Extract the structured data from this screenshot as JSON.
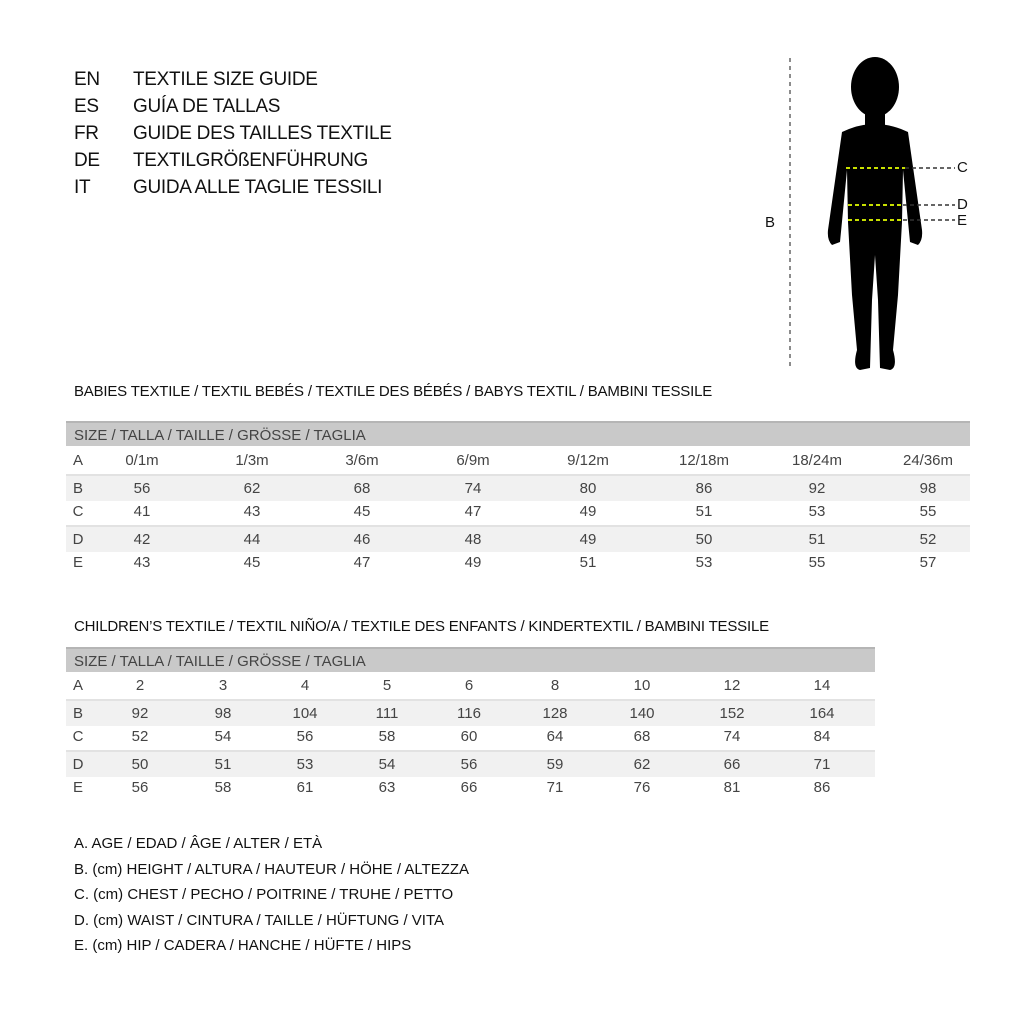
{
  "title_lines": [
    {
      "code": "EN",
      "text": "TEXTILE SIZE GUIDE"
    },
    {
      "code": "ES",
      "text": "GUÍA DE TALLAS"
    },
    {
      "code": "FR",
      "text": "GUIDE DES TAILLES TEXTILE"
    },
    {
      "code": "DE",
      "text": "TEXTILGRÖßENFÜHRUNG"
    },
    {
      "code": "IT",
      "text": "GUIDA ALLE TAGLIE TESSILI"
    }
  ],
  "figure_labels": {
    "b": "B",
    "c": "C",
    "d": "D",
    "e": "E"
  },
  "babies": {
    "title": "BABIES TEXTILE / TEXTIL BEBÉS / TEXTILE DES BÉBÉS / BABYS TEXTIL  / BAMBINI TESSILE",
    "header": "SIZE / TALLA / TAILLE / GRÖSSE / TAGLIA",
    "rows": [
      {
        "label": "A",
        "values": [
          "0/1m",
          "1/3m",
          "3/6m",
          "6/9m",
          "9/12m",
          "12/18m",
          "18/24m",
          "24/36m"
        ]
      },
      {
        "label": "B",
        "values": [
          "56",
          "62",
          "68",
          "74",
          "80",
          "86",
          "92",
          "98"
        ]
      },
      {
        "label": "C",
        "values": [
          "41",
          "43",
          "45",
          "47",
          "49",
          "51",
          "53",
          "55"
        ]
      },
      {
        "label": "D",
        "values": [
          "42",
          "44",
          "46",
          "48",
          "49",
          "50",
          "51",
          "52"
        ]
      },
      {
        "label": "E",
        "values": [
          "43",
          "45",
          "47",
          "49",
          "51",
          "53",
          "55",
          "57"
        ]
      }
    ]
  },
  "children": {
    "title": "CHILDREN’S TEXTILE / TEXTIL NIÑO/A / TEXTILE DES ENFANTS / KINDERTEXTIL / BAMBINI TESSILE",
    "header": "SIZE / TALLA / TAILLE / GRÖSSE / TAGLIA",
    "rows": [
      {
        "label": "A",
        "values": [
          "2",
          "3",
          "4",
          "5",
          "6",
          "8",
          "10",
          "12",
          "14"
        ]
      },
      {
        "label": "B",
        "values": [
          "92",
          "98",
          "104",
          "111",
          "116",
          "128",
          "140",
          "152",
          "164"
        ]
      },
      {
        "label": "C",
        "values": [
          "52",
          "54",
          "56",
          "58",
          "60",
          "64",
          "68",
          "74",
          "84"
        ]
      },
      {
        "label": "D",
        "values": [
          "50",
          "51",
          "53",
          "54",
          "56",
          "59",
          "62",
          "66",
          "71"
        ]
      },
      {
        "label": "E",
        "values": [
          "56",
          "58",
          "61",
          "63",
          "66",
          "71",
          "76",
          "81",
          "86"
        ]
      }
    ]
  },
  "legend": [
    "A. AGE / EDAD / ÂGE / ALTER / ETÀ",
    "B. (cm) HEIGHT / ALTURA / HAUTEUR / HÖHE / ALTEZZA",
    "C. (cm) CHEST / PECHO / POITRINE / TRUHE / PETTO",
    "D. (cm) WAIST / CINTURA / TAILLE / HÜFTUNG / VITA",
    "E. (cm) HIP / CADERA / HANCHE / HÜFTE / HIPS"
  ],
  "colors": {
    "measure_line": "#c8e000",
    "header_bg": "#c9c9c9"
  }
}
